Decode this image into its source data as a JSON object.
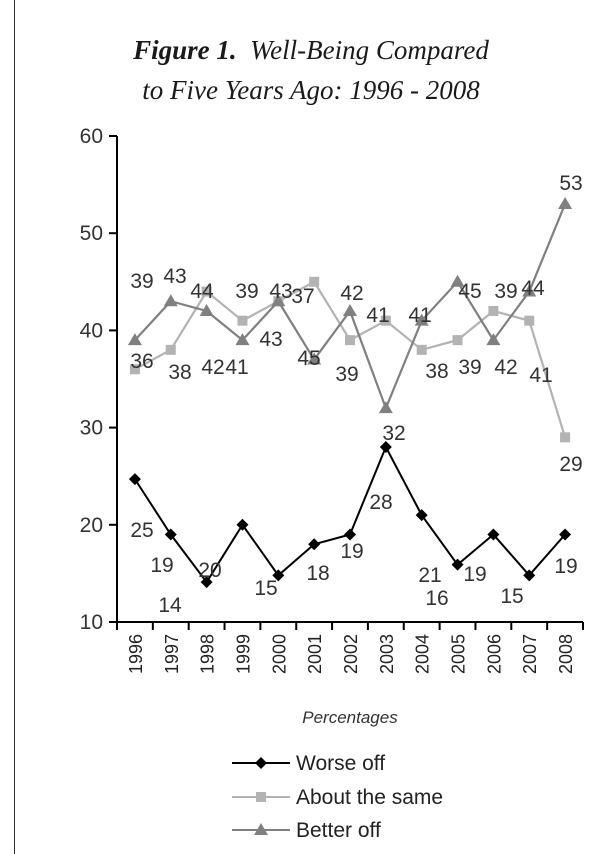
{
  "title": {
    "figure_label": "Figure 1.",
    "line1_rest": "Well-Being Compared",
    "line2": "to Five Years Ago:  1996 - 2008"
  },
  "chart_data": {
    "type": "line",
    "title": "Figure 1.  Well-Being Compared to Five Years Ago:  1996 - 2008",
    "xlabel": "Percentages",
    "ylabel": "",
    "categories": [
      "1996",
      "1997",
      "1998",
      "1999",
      "2000",
      "2001",
      "2002",
      "2003",
      "2004",
      "2005",
      "2006",
      "2007",
      "2008"
    ],
    "ylim": [
      10,
      60
    ],
    "yticks": [
      10,
      20,
      30,
      40,
      50,
      60
    ],
    "grid": false,
    "legend_position": "bottom",
    "series": [
      {
        "name": "Worse off",
        "values": [
          25,
          19,
          14,
          20,
          15,
          18,
          19,
          28,
          21,
          16,
          19,
          15,
          19
        ],
        "plot_values": [
          24.7,
          19,
          14.1,
          20,
          14.8,
          18,
          19,
          28,
          21,
          15.9,
          19,
          14.8,
          19
        ],
        "color": "#000000",
        "marker": "diamond"
      },
      {
        "name": "About the same",
        "values": [
          36,
          38,
          44,
          41,
          43,
          45,
          39,
          41,
          38,
          39,
          42,
          41,
          29
        ],
        "color": "#b3b3b3",
        "marker": "square"
      },
      {
        "name": "Better off",
        "values": [
          39,
          43,
          42,
          39,
          43,
          37,
          42,
          32,
          41,
          45,
          39,
          44,
          53
        ],
        "color": "#808080",
        "marker": "triangle"
      }
    ]
  }
}
